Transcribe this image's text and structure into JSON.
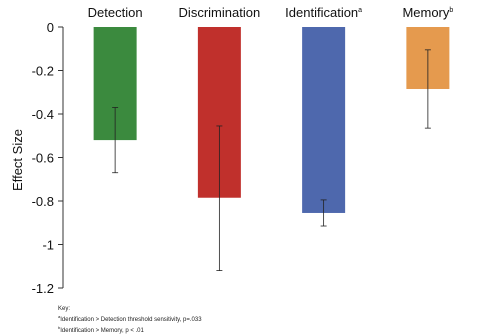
{
  "chart_data": {
    "type": "bar",
    "categories": [
      "Detection",
      "Discrimination",
      "Identification",
      "Memory"
    ],
    "category_superscripts": [
      "",
      "",
      "a",
      "b"
    ],
    "values": [
      -0.52,
      -0.785,
      -0.855,
      -0.285
    ],
    "error_low": [
      -0.67,
      -1.12,
      -0.915,
      -0.465
    ],
    "error_high": [
      -0.37,
      -0.455,
      -0.795,
      -0.105
    ],
    "colors": [
      "#3b8a3e",
      "#c0302c",
      "#4e68ad",
      "#e59a4e"
    ],
    "ylabel": "Effect Size",
    "ylim": [
      -1.2,
      0
    ],
    "yticks": [
      0,
      -0.2,
      -0.4,
      -0.6,
      -0.8,
      -1,
      -1.2
    ],
    "ytick_labels": [
      "0",
      "-0.2",
      "-0.4",
      "-0.6",
      "-0.8",
      "-1",
      "-1.2"
    ],
    "grid": false,
    "key": {
      "title": "Key:",
      "notes": [
        {
          "mark": "a",
          "text": "Identification > Detection threshold sensitivity, p=.033"
        },
        {
          "mark": "b",
          "text": "Identification > Memory, p < .01"
        }
      ]
    }
  }
}
